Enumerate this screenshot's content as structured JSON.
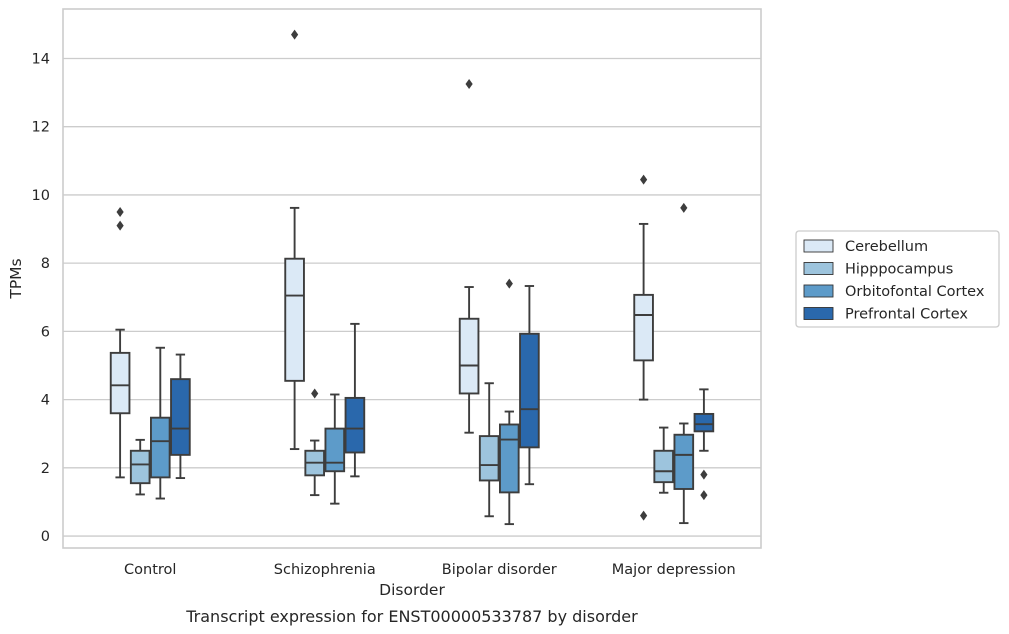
{
  "chart_data": {
    "type": "box",
    "xlabel": "Disorder",
    "ylabel": "TPMs",
    "caption": "Transcript expression for ENST00000533787 by disorder",
    "ylim": [
      -0.35,
      15.45
    ],
    "yticks": [
      0,
      2,
      4,
      6,
      8,
      10,
      12,
      14
    ],
    "grid": "horizontal",
    "legend_position": "right",
    "categories": [
      "Control",
      "Schizophrenia",
      "Bipolar disorder",
      "Major depression"
    ],
    "series": [
      {
        "name": "Cerebellum",
        "color": "#dbe9f6",
        "boxes": [
          {
            "whisker_low": 1.72,
            "q1": 3.6,
            "median": 4.42,
            "q3": 5.37,
            "whisker_high": 6.05,
            "outliers": [
              9.1,
              9.5
            ]
          },
          {
            "whisker_low": 2.55,
            "q1": 4.55,
            "median": 7.05,
            "q3": 8.13,
            "whisker_high": 9.62,
            "outliers": [
              14.7
            ]
          },
          {
            "whisker_low": 3.03,
            "q1": 4.18,
            "median": 5.0,
            "q3": 6.37,
            "whisker_high": 7.3,
            "outliers": [
              13.25
            ]
          },
          {
            "whisker_low": 4.0,
            "q1": 5.15,
            "median": 6.48,
            "q3": 7.07,
            "whisker_high": 9.15,
            "outliers": [
              0.6,
              10.45
            ]
          }
        ]
      },
      {
        "name": "Hipppocampus",
        "color": "#9dc4dd",
        "boxes": [
          {
            "whisker_low": 1.22,
            "q1": 1.55,
            "median": 2.1,
            "q3": 2.5,
            "whisker_high": 2.82,
            "outliers": []
          },
          {
            "whisker_low": 1.2,
            "q1": 1.78,
            "median": 2.15,
            "q3": 2.5,
            "whisker_high": 2.8,
            "outliers": [
              4.18
            ]
          },
          {
            "whisker_low": 0.58,
            "q1": 1.63,
            "median": 2.08,
            "q3": 2.93,
            "whisker_high": 4.48,
            "outliers": []
          },
          {
            "whisker_low": 1.27,
            "q1": 1.58,
            "median": 1.9,
            "q3": 2.5,
            "whisker_high": 3.18,
            "outliers": []
          }
        ]
      },
      {
        "name": "Orbitofontal Cortex",
        "color": "#5d9bc9",
        "boxes": [
          {
            "whisker_low": 1.1,
            "q1": 1.72,
            "median": 2.78,
            "q3": 3.47,
            "whisker_high": 5.52,
            "outliers": []
          },
          {
            "whisker_low": 0.95,
            "q1": 1.9,
            "median": 2.15,
            "q3": 3.15,
            "whisker_high": 4.15,
            "outliers": []
          },
          {
            "whisker_low": 0.35,
            "q1": 1.28,
            "median": 2.83,
            "q3": 3.27,
            "whisker_high": 3.65,
            "outliers": [
              7.4
            ]
          },
          {
            "whisker_low": 0.38,
            "q1": 1.38,
            "median": 2.38,
            "q3": 2.97,
            "whisker_high": 3.3,
            "outliers": [
              9.62
            ]
          }
        ]
      },
      {
        "name": "Prefrontal Cortex",
        "color": "#2a68ac",
        "boxes": [
          {
            "whisker_low": 1.7,
            "q1": 2.38,
            "median": 3.15,
            "q3": 4.6,
            "whisker_high": 5.32,
            "outliers": []
          },
          {
            "whisker_low": 1.75,
            "q1": 2.45,
            "median": 3.15,
            "q3": 4.05,
            "whisker_high": 6.22,
            "outliers": []
          },
          {
            "whisker_low": 1.52,
            "q1": 2.6,
            "median": 3.72,
            "q3": 5.93,
            "whisker_high": 7.33,
            "outliers": []
          },
          {
            "whisker_low": 2.5,
            "q1": 3.07,
            "median": 3.28,
            "q3": 3.58,
            "whisker_high": 4.3,
            "outliers": [
              1.2,
              1.8
            ]
          }
        ]
      }
    ]
  }
}
